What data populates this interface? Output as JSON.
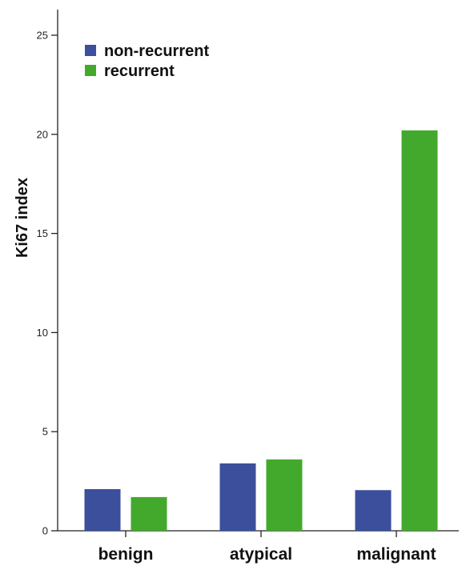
{
  "chart_data": {
    "type": "bar",
    "title": "",
    "xlabel": "",
    "ylabel": "Ki67 index",
    "categories": [
      "benign",
      "atypical",
      "malignant"
    ],
    "series": [
      {
        "name": "non-recurrent",
        "color": "#3b4f9c",
        "values": [
          2.1,
          3.4,
          2.05
        ]
      },
      {
        "name": "recurrent",
        "color": "#43a92d",
        "values": [
          1.7,
          3.6,
          20.2
        ]
      }
    ],
    "ylim": [
      0,
      25.5
    ],
    "yticks": [
      0,
      5,
      10,
      15,
      20,
      25
    ],
    "grid": false,
    "legend": "top-left"
  }
}
